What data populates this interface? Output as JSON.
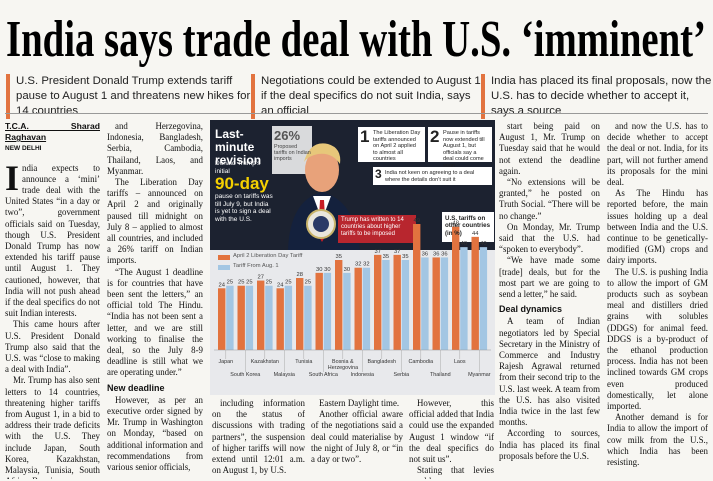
{
  "headline": "India says trade deal with U.S. ‘imminent’",
  "decks": [
    "U.S. President Donald Trump extends tariff pause to August 1 and threatens new hikes for 14 countries",
    "Negotiations could be extended to August 1 if the deal specifics do not suit India, says an official",
    "India has placed its final proposals, now the U.S. has to decide whether to accept it, says a source"
  ],
  "byline": {
    "name": "T.C.A. Sharad Raghavan",
    "place": "NEW DELHI"
  },
  "columns": [
    [
      {
        "paragraphs": [
          "India expects to announce a ‘mini’ trade deal with the United States “in a day or two”, government officials said on Tuesday, though U.S. President Donald Trump has now extended his tariff pause until August 1. They cautioned, however, that India will not push ahead if the deal specifics do not suit Indian interests.",
          "This came hours after U.S. President Donald Trump also said that the U.S. was “close to making a deal with India”.",
          "Mr. Trump has also sent letters to 14 countries, threatening higher tariffs from August 1, in a bid to address their trade deficits with the U.S. They include Japan, South Korea, Kazakhstan, Malaysia, Tunisia, South Africa, Bosnia"
        ]
      }
    ],
    [
      {
        "paragraphs": [
          "and Herzegovina, Indonesia, Bangladesh, Serbia, Cambodia, Thailand, Laos, and Myanmar.",
          "The Liberation Day tariffs – announced on April 2 and originally paused till midnight on July 8 – applied to almost all countries, and included a 26% tariff on Indian imports.",
          "“The August 1 deadline is for countries that have been sent the letters,” an official told The Hindu. “India has not been sent a letter, and we are still working to finalise the deal, so the July 8-9 deadline is still what we are operating under.”"
        ]
      },
      {
        "heading": "New deadline",
        "paragraphs": [
          "However, as per an executive order signed by Mr. Trump in Washington on Monday, “based on additional information and recommendations from various senior officials,"
        ]
      }
    ],
    [
      {
        "paragraphs": [
          "including information on the status of discussions with trading partners”, the suspension of higher tariffs will now extend until 12:01 a.m. on August 1, by U.S."
        ]
      }
    ],
    [
      {
        "paragraphs": [
          "Eastern Daylight time.",
          "Another official aware of the negotiations said a deal could materialise by the night of July 8, or “in a day or two”."
        ]
      }
    ],
    [
      {
        "paragraphs": [
          "However, this official added that India could use the expanded August 1 window “if the deal specifics do not suit us”.",
          "Stating that levies would"
        ]
      }
    ],
    [
      {
        "paragraphs": [
          "start being paid on August 1, Mr. Trump on Tuesday said that he would not extend the deadline again.",
          "“No extensions will be granted,” he posted on Truth Social. “There will be no change.”",
          "On Monday, Mr. Trump said that the U.S. had “spoken to everybody”.",
          "“We have made some [trade] deals, but for the most part we are going to send a letter,” he said."
        ]
      },
      {
        "heading": "Deal dynamics",
        "paragraphs": [
          "A team of Indian negotiators led by Special Secretary in the Ministry of Commerce and Industry Rajesh Agrawal returned from their second trip to the U.S. last week. A team from the U.S. has also visited India twice in the last few months.",
          "According to sources, India has placed its final proposals before the U.S."
        ]
      }
    ],
    [
      {
        "paragraphs": [
          "and now the U.S. has to decide whether to accept the deal or not. India, for its part, will not further amend its proposals for the mini deal.",
          "As The Hindu has reported before, the main issues holding up a deal between India and the U.S. continue to be genetically-modified (GM) crops and dairy imports.",
          "The U.S. is pushing India to allow the import of GM products such as soybean meal and distillers dried grains with solubles (DDGS) for animal feed. DDGS is a by-product of the ethanol production process. India has not been inclined towards GM crops even produced domestically, let alone imported.",
          "Another demand is for India to allow the import of cow milk from the U.S., which India has been resisting."
        ]
      }
    ]
  ],
  "graphic": {
    "title": "Last-minute revision",
    "stat": {
      "value": "26%",
      "label": "Proposed tariffs on Indian imports"
    },
    "pause": {
      "before": "Donald Trump’s initial",
      "highlight": "90-day",
      "after": "pause on tariffs was till July 9, but India is yet to sign a deal with the U.S."
    },
    "steps": [
      {
        "number": 1,
        "text": "The Liberation Day tariffs announced on April 2 applied to almost all countries"
      },
      {
        "number": 2,
        "text": "Pause in tariffs now extended till August 1, but officials say a deal could come soon"
      },
      {
        "number": 3,
        "text": "India not keen on agreeing to a deal where the details don’t suit it"
      }
    ],
    "letter_note": "Trump has written to 14 countries about higher tariffs to be imposed",
    "chart_title": "U.S. tariffs on other countries (in %)"
  },
  "chart_data": {
    "type": "bar",
    "categories": [
      "Japan",
      "South Korea",
      "Kazakhstan",
      "Malaysia",
      "Tunisia",
      "South Africa",
      "Bosnia & Herzegovina",
      "Indonesia",
      "Bangladesh",
      "Serbia",
      "Cambodia",
      "Thailand",
      "Laos",
      "Myanmar"
    ],
    "series": [
      {
        "name": "April 2 Liberation Day Tariff",
        "color": "#e2733f",
        "values": [
          24,
          25,
          27,
          24,
          28,
          30,
          35,
          32,
          37,
          37,
          49,
          36,
          48,
          44
        ]
      },
      {
        "name": "Tariff From Aug. 1",
        "color": "#a3c6e3",
        "values": [
          25,
          25,
          25,
          25,
          25,
          30,
          30,
          32,
          35,
          35,
          36,
          36,
          40,
          40
        ]
      }
    ]
  }
}
